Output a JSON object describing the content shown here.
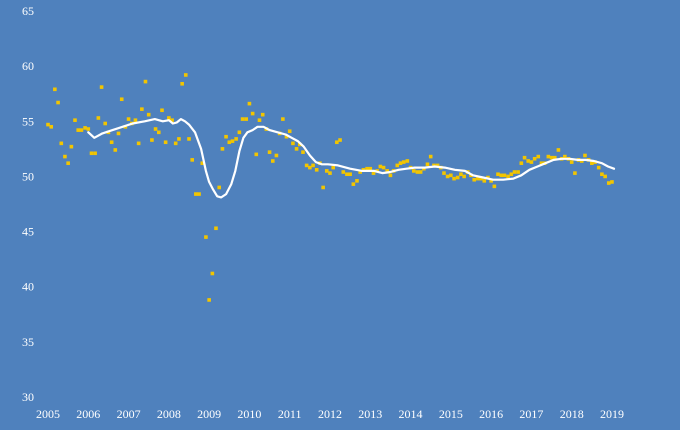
{
  "chart_data": {
    "type": "scatter",
    "title": "",
    "xlabel": "",
    "ylabel": "",
    "x_ticks": [
      "2005",
      "2006",
      "2007",
      "2008",
      "2009",
      "2010",
      "2011",
      "2012",
      "2013",
      "2014",
      "2015",
      "2016",
      "2017",
      "2018",
      "2019"
    ],
    "y_ticks": [
      "30",
      "35",
      "40",
      "45",
      "50",
      "55",
      "60",
      "65"
    ],
    "xlim": [
      2005.0,
      2019.05
    ],
    "ylim": [
      30,
      65
    ],
    "grid": false,
    "legend": "none",
    "colors": {
      "background": "#4f81bd",
      "points": "#f2c500",
      "line": "#ffffff",
      "text": "#ffffff"
    },
    "series": [
      {
        "type": "scatter",
        "points": [
          [
            2005.0,
            54.7
          ],
          [
            2005.08,
            54.5
          ],
          [
            2005.17,
            57.9
          ],
          [
            2005.25,
            56.7
          ],
          [
            2005.33,
            53.0
          ],
          [
            2005.42,
            51.8
          ],
          [
            2005.5,
            51.2
          ],
          [
            2005.58,
            52.7
          ],
          [
            2005.67,
            55.1
          ],
          [
            2005.75,
            54.2
          ],
          [
            2005.83,
            54.2
          ],
          [
            2005.92,
            54.4
          ],
          [
            2006.0,
            54.3
          ],
          [
            2006.08,
            52.1
          ],
          [
            2006.17,
            52.1
          ],
          [
            2006.25,
            55.3
          ],
          [
            2006.33,
            58.1
          ],
          [
            2006.42,
            54.8
          ],
          [
            2006.5,
            54.0
          ],
          [
            2006.58,
            53.1
          ],
          [
            2006.67,
            52.4
          ],
          [
            2006.75,
            53.9
          ],
          [
            2006.83,
            57.0
          ],
          [
            2006.92,
            54.5
          ],
          [
            2007.0,
            55.2
          ],
          [
            2007.08,
            54.8
          ],
          [
            2007.17,
            55.1
          ],
          [
            2007.25,
            53.0
          ],
          [
            2007.33,
            56.1
          ],
          [
            2007.42,
            58.6
          ],
          [
            2007.5,
            55.6
          ],
          [
            2007.58,
            53.3
          ],
          [
            2007.67,
            54.3
          ],
          [
            2007.75,
            54.0
          ],
          [
            2007.83,
            56.0
          ],
          [
            2007.92,
            53.1
          ],
          [
            2008.0,
            55.3
          ],
          [
            2008.08,
            55.1
          ],
          [
            2008.17,
            53.0
          ],
          [
            2008.25,
            53.4
          ],
          [
            2008.33,
            58.4
          ],
          [
            2008.42,
            59.2
          ],
          [
            2008.5,
            53.4
          ],
          [
            2008.58,
            51.5
          ],
          [
            2008.67,
            48.4
          ],
          [
            2008.75,
            48.4
          ],
          [
            2008.83,
            51.2
          ],
          [
            2008.92,
            44.5
          ],
          [
            2009.0,
            38.8
          ],
          [
            2009.08,
            41.2
          ],
          [
            2009.17,
            45.3
          ],
          [
            2009.25,
            49.0
          ],
          [
            2009.33,
            52.5
          ],
          [
            2009.42,
            53.6
          ],
          [
            2009.5,
            53.1
          ],
          [
            2009.58,
            53.2
          ],
          [
            2009.67,
            53.4
          ],
          [
            2009.75,
            54.0
          ],
          [
            2009.83,
            55.2
          ],
          [
            2009.92,
            55.2
          ],
          [
            2010.0,
            56.6
          ],
          [
            2010.08,
            55.7
          ],
          [
            2010.17,
            52.0
          ],
          [
            2010.25,
            55.1
          ],
          [
            2010.33,
            55.6
          ],
          [
            2010.42,
            54.3
          ],
          [
            2010.5,
            52.2
          ],
          [
            2010.58,
            51.4
          ],
          [
            2010.67,
            51.9
          ],
          [
            2010.75,
            53.9
          ],
          [
            2010.83,
            55.2
          ],
          [
            2010.92,
            53.6
          ],
          [
            2011.0,
            54.1
          ],
          [
            2011.08,
            53.0
          ],
          [
            2011.17,
            52.5
          ],
          [
            2011.25,
            52.9
          ],
          [
            2011.33,
            52.2
          ],
          [
            2011.42,
            51.0
          ],
          [
            2011.5,
            50.8
          ],
          [
            2011.58,
            51.0
          ],
          [
            2011.67,
            50.6
          ],
          [
            2011.75,
            51.2
          ],
          [
            2011.83,
            49.0
          ],
          [
            2011.92,
            50.5
          ],
          [
            2012.0,
            50.3
          ],
          [
            2012.08,
            50.8
          ],
          [
            2012.17,
            53.1
          ],
          [
            2012.25,
            53.3
          ],
          [
            2012.33,
            50.4
          ],
          [
            2012.42,
            50.2
          ],
          [
            2012.5,
            50.2
          ],
          [
            2012.58,
            49.3
          ],
          [
            2012.67,
            49.6
          ],
          [
            2012.75,
            50.4
          ],
          [
            2012.83,
            50.6
          ],
          [
            2012.92,
            50.7
          ],
          [
            2013.0,
            50.7
          ],
          [
            2013.08,
            50.3
          ],
          [
            2013.17,
            50.5
          ],
          [
            2013.25,
            50.9
          ],
          [
            2013.33,
            50.8
          ],
          [
            2013.42,
            50.5
          ],
          [
            2013.5,
            50.1
          ],
          [
            2013.58,
            50.5
          ],
          [
            2013.67,
            51.0
          ],
          [
            2013.75,
            51.2
          ],
          [
            2013.83,
            51.3
          ],
          [
            2013.92,
            51.4
          ],
          [
            2014.0,
            50.8
          ],
          [
            2014.08,
            50.5
          ],
          [
            2014.17,
            50.4
          ],
          [
            2014.25,
            50.4
          ],
          [
            2014.33,
            50.7
          ],
          [
            2014.42,
            51.1
          ],
          [
            2014.5,
            51.8
          ],
          [
            2014.58,
            51.0
          ],
          [
            2014.67,
            51.0
          ],
          [
            2014.75,
            50.8
          ],
          [
            2014.83,
            50.3
          ],
          [
            2014.92,
            50.0
          ],
          [
            2015.0,
            50.1
          ],
          [
            2015.08,
            49.8
          ],
          [
            2015.17,
            49.9
          ],
          [
            2015.25,
            50.2
          ],
          [
            2015.33,
            50.0
          ],
          [
            2015.42,
            50.4
          ],
          [
            2015.5,
            50.1
          ],
          [
            2015.58,
            49.7
          ],
          [
            2015.67,
            49.8
          ],
          [
            2015.75,
            49.8
          ],
          [
            2015.83,
            49.6
          ],
          [
            2015.92,
            49.9
          ],
          [
            2016.0,
            49.6
          ],
          [
            2016.08,
            49.1
          ],
          [
            2016.17,
            50.2
          ],
          [
            2016.25,
            50.1
          ],
          [
            2016.33,
            50.1
          ],
          [
            2016.42,
            50.0
          ],
          [
            2016.5,
            50.2
          ],
          [
            2016.58,
            50.4
          ],
          [
            2016.67,
            50.4
          ],
          [
            2016.75,
            51.2
          ],
          [
            2016.83,
            51.7
          ],
          [
            2016.92,
            51.4
          ],
          [
            2017.0,
            51.3
          ],
          [
            2017.08,
            51.6
          ],
          [
            2017.17,
            51.8
          ],
          [
            2017.25,
            51.2
          ],
          [
            2017.33,
            51.2
          ],
          [
            2017.42,
            51.8
          ],
          [
            2017.5,
            51.7
          ],
          [
            2017.58,
            51.7
          ],
          [
            2017.67,
            52.4
          ],
          [
            2017.75,
            51.6
          ],
          [
            2017.83,
            51.8
          ],
          [
            2017.92,
            51.6
          ],
          [
            2018.0,
            51.3
          ],
          [
            2018.08,
            50.3
          ],
          [
            2018.17,
            51.5
          ],
          [
            2018.25,
            51.4
          ],
          [
            2018.33,
            51.9
          ],
          [
            2018.42,
            51.5
          ],
          [
            2018.5,
            51.2
          ],
          [
            2018.58,
            51.3
          ],
          [
            2018.67,
            50.8
          ],
          [
            2018.75,
            50.2
          ],
          [
            2018.83,
            50.0
          ],
          [
            2018.92,
            49.4
          ],
          [
            2019.0,
            49.5
          ]
        ]
      },
      {
        "type": "line",
        "points": [
          [
            2006.0,
            54.0
          ],
          [
            2006.15,
            53.5
          ],
          [
            2006.35,
            53.9
          ],
          [
            2006.6,
            54.2
          ],
          [
            2006.85,
            54.5
          ],
          [
            2007.1,
            54.8
          ],
          [
            2007.4,
            55.0
          ],
          [
            2007.65,
            55.2
          ],
          [
            2007.85,
            55.0
          ],
          [
            2008.0,
            55.1
          ],
          [
            2008.1,
            54.8
          ],
          [
            2008.2,
            54.9
          ],
          [
            2008.3,
            55.2
          ],
          [
            2008.4,
            55.0
          ],
          [
            2008.5,
            54.7
          ],
          [
            2008.65,
            54.0
          ],
          [
            2008.8,
            52.5
          ],
          [
            2008.92,
            50.5
          ],
          [
            2009.0,
            49.5
          ],
          [
            2009.1,
            48.8
          ],
          [
            2009.2,
            48.2
          ],
          [
            2009.3,
            48.1
          ],
          [
            2009.42,
            48.4
          ],
          [
            2009.55,
            49.3
          ],
          [
            2009.65,
            50.5
          ],
          [
            2009.75,
            52.3
          ],
          [
            2009.85,
            53.5
          ],
          [
            2009.95,
            54.0
          ],
          [
            2010.08,
            54.2
          ],
          [
            2010.2,
            54.5
          ],
          [
            2010.35,
            54.5
          ],
          [
            2010.5,
            54.2
          ],
          [
            2010.7,
            54.0
          ],
          [
            2010.9,
            53.8
          ],
          [
            2011.05,
            53.5
          ],
          [
            2011.2,
            53.2
          ],
          [
            2011.35,
            52.7
          ],
          [
            2011.5,
            51.9
          ],
          [
            2011.65,
            51.3
          ],
          [
            2011.8,
            51.1
          ],
          [
            2011.95,
            51.1
          ],
          [
            2012.2,
            51.0
          ],
          [
            2012.5,
            50.7
          ],
          [
            2012.8,
            50.5
          ],
          [
            2013.1,
            50.5
          ],
          [
            2013.3,
            50.3
          ],
          [
            2013.5,
            50.4
          ],
          [
            2013.7,
            50.6
          ],
          [
            2013.9,
            50.7
          ],
          [
            2014.1,
            50.8
          ],
          [
            2014.35,
            50.8
          ],
          [
            2014.6,
            50.9
          ],
          [
            2014.85,
            50.8
          ],
          [
            2015.1,
            50.6
          ],
          [
            2015.35,
            50.5
          ],
          [
            2015.55,
            50.1
          ],
          [
            2015.8,
            49.9
          ],
          [
            2016.05,
            49.7
          ],
          [
            2016.3,
            49.7
          ],
          [
            2016.55,
            49.8
          ],
          [
            2016.75,
            50.1
          ],
          [
            2016.95,
            50.6
          ],
          [
            2017.15,
            50.9
          ],
          [
            2017.35,
            51.2
          ],
          [
            2017.55,
            51.5
          ],
          [
            2017.75,
            51.6
          ],
          [
            2017.95,
            51.6
          ],
          [
            2018.15,
            51.5
          ],
          [
            2018.35,
            51.5
          ],
          [
            2018.55,
            51.4
          ],
          [
            2018.75,
            51.2
          ],
          [
            2018.9,
            50.9
          ],
          [
            2019.05,
            50.7
          ]
        ]
      }
    ]
  }
}
